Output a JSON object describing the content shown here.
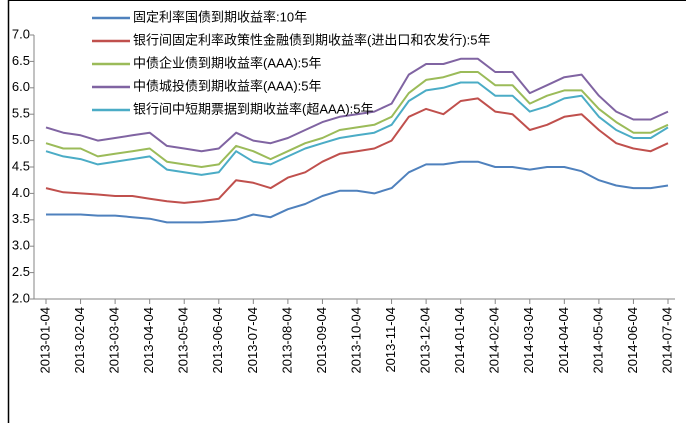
{
  "chart_data": {
    "type": "line",
    "categories": [
      "2013-01-04",
      null,
      "2013-02-04",
      null,
      "2013-03-04",
      null,
      "2013-04-04",
      null,
      "2013-05-04",
      null,
      "2013-06-04",
      null,
      "2013-07-04",
      null,
      "2013-08-04",
      null,
      "2013-09-04",
      null,
      "2013-10-04",
      null,
      "2013-11-04",
      null,
      "2013-12-04",
      null,
      "2014-01-04",
      null,
      "2014-02-04",
      null,
      "2014-03-04",
      null,
      "2014-04-04",
      null,
      "2014-05-04",
      null,
      "2014-06-04",
      null,
      "2014-07-04"
    ],
    "series": [
      {
        "name": "固定利率国债到期收益率:10年",
        "color": "#4f81bd",
        "values": [
          3.6,
          3.6,
          3.6,
          3.58,
          3.58,
          3.55,
          3.52,
          3.45,
          3.45,
          3.45,
          3.47,
          3.5,
          3.6,
          3.55,
          3.7,
          3.8,
          3.95,
          4.05,
          4.05,
          4.0,
          4.1,
          4.4,
          4.55,
          4.55,
          4.6,
          4.6,
          4.5,
          4.5,
          4.45,
          4.5,
          4.5,
          4.42,
          4.25,
          4.15,
          4.1,
          4.1,
          4.15
        ]
      },
      {
        "name": "银行间固定利率政策性金融债到期收益率(进出口和农发行):5年",
        "color": "#c0504d",
        "values": [
          4.1,
          4.02,
          4.0,
          3.98,
          3.95,
          3.95,
          3.9,
          3.85,
          3.82,
          3.85,
          3.9,
          4.25,
          4.2,
          4.1,
          4.3,
          4.4,
          4.6,
          4.75,
          4.8,
          4.85,
          5.0,
          5.45,
          5.6,
          5.5,
          5.75,
          5.8,
          5.55,
          5.5,
          5.2,
          5.3,
          5.45,
          5.5,
          5.2,
          4.95,
          4.85,
          4.8,
          4.95
        ]
      },
      {
        "name": "中债企业债到期收益率(AAA):5年",
        "color": "#9bbb59",
        "values": [
          4.95,
          4.85,
          4.85,
          4.7,
          4.75,
          4.8,
          4.85,
          4.6,
          4.55,
          4.5,
          4.55,
          4.9,
          4.8,
          4.65,
          4.8,
          4.95,
          5.05,
          5.2,
          5.25,
          5.3,
          5.45,
          5.9,
          6.15,
          6.2,
          6.3,
          6.3,
          6.05,
          6.05,
          5.7,
          5.85,
          5.95,
          5.95,
          5.6,
          5.35,
          5.15,
          5.15,
          5.3
        ]
      },
      {
        "name": "中债城投债到期收益率(AAA):5年",
        "color": "#8064a2",
        "values": [
          5.25,
          5.15,
          5.1,
          5.0,
          5.05,
          5.1,
          5.15,
          4.9,
          4.85,
          4.8,
          4.85,
          5.15,
          5.0,
          4.95,
          5.05,
          5.2,
          5.35,
          5.45,
          5.5,
          5.55,
          5.7,
          6.25,
          6.45,
          6.45,
          6.55,
          6.55,
          6.3,
          6.3,
          5.9,
          6.05,
          6.2,
          6.25,
          5.85,
          5.55,
          5.4,
          5.4,
          5.55
        ]
      },
      {
        "name": "银行间中短期票据到期收益率(超AAA):5年",
        "color": "#4bacc6",
        "values": [
          4.8,
          4.7,
          4.65,
          4.55,
          4.6,
          4.65,
          4.7,
          4.45,
          4.4,
          4.35,
          4.4,
          4.8,
          4.6,
          4.55,
          4.7,
          4.85,
          4.95,
          5.05,
          5.1,
          5.15,
          5.3,
          5.75,
          5.95,
          6.0,
          6.1,
          6.1,
          5.85,
          5.85,
          5.55,
          5.65,
          5.8,
          5.85,
          5.45,
          5.2,
          5.05,
          5.05,
          5.25
        ]
      }
    ],
    "ylim": [
      2,
      7
    ],
    "yticks": [
      {
        "value": 2,
        "label": "2.0"
      },
      2.5,
      {
        "value": 3,
        "label": "3.0"
      },
      3.5,
      {
        "value": 4,
        "label": "4.0"
      },
      4.5,
      {
        "value": 5,
        "label": "5.0"
      },
      5.5,
      {
        "value": 6,
        "label": "6.0"
      },
      6.5,
      {
        "value": 7,
        "label": "7.0"
      }
    ],
    "grid": false
  }
}
